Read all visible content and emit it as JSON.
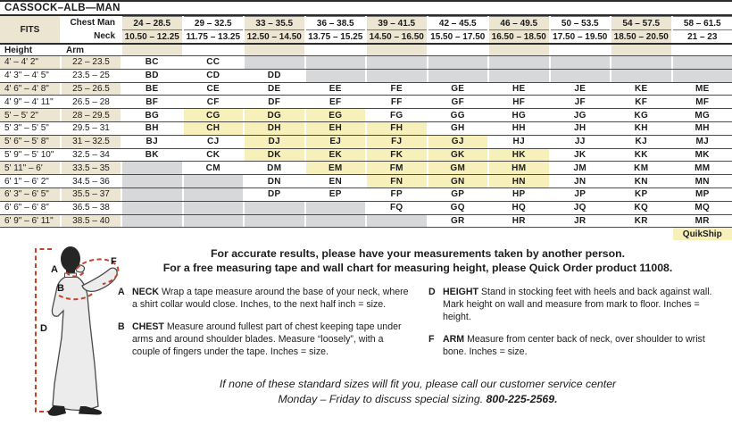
{
  "title": "CASSOCK–ALB—MAN",
  "size_table": {
    "fits_label": "FITS",
    "chest_label": "Chest Man",
    "neck_label": "Neck",
    "height_label": "Height",
    "arm_label": "Arm",
    "chest_ranges": [
      "24 – 28.5",
      "29 – 32.5",
      "33 – 35.5",
      "36 – 38.5",
      "39 – 41.5",
      "42 – 45.5",
      "46 – 49.5",
      "50 – 53.5",
      "54 – 57.5",
      "58 – 61.5"
    ],
    "neck_ranges": [
      "10.50 – 12.25",
      "11.75 – 13.25",
      "12.50 – 14.50",
      "13.75 – 15.25",
      "14.50 – 16.50",
      "15.50 – 17.50",
      "16.50 – 18.50",
      "17.50 – 19.50",
      "18.50 – 20.50",
      "21 – 23"
    ],
    "rows": [
      {
        "height": "4' – 4' 2\"",
        "arm": "22 – 23.5",
        "codes": [
          "BC",
          "CC",
          "",
          "",
          "",
          "",
          "",
          "",
          "",
          ""
        ]
      },
      {
        "height": "4' 3\" – 4' 5\"",
        "arm": "23.5 – 25",
        "codes": [
          "BD",
          "CD",
          "DD",
          "",
          "",
          "",
          "",
          "",
          "",
          ""
        ]
      },
      {
        "height": "4' 6\" – 4' 8\"",
        "arm": "25 – 26.5",
        "codes": [
          "BE",
          "CE",
          "DE",
          "EE",
          "FE",
          "GE",
          "HE",
          "JE",
          "KE",
          "ME"
        ]
      },
      {
        "height": "4' 9\" – 4' 11\"",
        "arm": "26.5 – 28",
        "codes": [
          "BF",
          "CF",
          "DF",
          "EF",
          "FF",
          "GF",
          "HF",
          "JF",
          "KF",
          "MF"
        ]
      },
      {
        "height": "5' – 5' 2\"",
        "arm": "28 – 29.5",
        "codes": [
          "BG",
          "CG",
          "DG",
          "EG",
          "FG",
          "GG",
          "HG",
          "JG",
          "KG",
          "MG"
        ]
      },
      {
        "height": "5' 3\" – 5' 5\"",
        "arm": "29.5 – 31",
        "codes": [
          "BH",
          "CH",
          "DH",
          "EH",
          "FH",
          "GH",
          "HH",
          "JH",
          "KH",
          "MH"
        ]
      },
      {
        "height": "5' 6\" – 5' 8\"",
        "arm": "31 – 32.5",
        "codes": [
          "BJ",
          "CJ",
          "DJ",
          "EJ",
          "FJ",
          "GJ",
          "HJ",
          "JJ",
          "KJ",
          "MJ"
        ]
      },
      {
        "height": "5' 9\" – 5' 10\"",
        "arm": "32.5 – 34",
        "codes": [
          "BK",
          "CK",
          "DK",
          "EK",
          "FK",
          "GK",
          "HK",
          "JK",
          "KK",
          "MK"
        ]
      },
      {
        "height": "5' 11\" – 6'",
        "arm": "33.5 – 35",
        "codes": [
          "",
          "CM",
          "DM",
          "EM",
          "FM",
          "GM",
          "HM",
          "JM",
          "KM",
          "MM"
        ]
      },
      {
        "height": "6' 1\" – 6' 2\"",
        "arm": "34.5 – 36",
        "codes": [
          "",
          "",
          "DN",
          "EN",
          "FN",
          "GN",
          "HN",
          "JN",
          "KN",
          "MN"
        ]
      },
      {
        "height": "6' 3\" – 6' 5\"",
        "arm": "35.5 – 37",
        "codes": [
          "",
          "",
          "DP",
          "EP",
          "FP",
          "GP",
          "HP",
          "JP",
          "KP",
          "MP"
        ]
      },
      {
        "height": "6' 6\" – 6' 8\"",
        "arm": "36.5 – 38",
        "codes": [
          "",
          "",
          "",
          "",
          "FQ",
          "GQ",
          "HQ",
          "JQ",
          "KQ",
          "MQ"
        ]
      },
      {
        "height": "6' 9\" – 6' 11\"",
        "arm": "38.5 – 40",
        "codes": [
          "",
          "",
          "",
          "",
          "",
          "GR",
          "HR",
          "JR",
          "KR",
          "MR"
        ]
      }
    ],
    "quikship_codes": [
      "CG",
      "DG",
      "EG",
      "CH",
      "DH",
      "EH",
      "FH",
      "DJ",
      "EJ",
      "FJ",
      "GJ",
      "DK",
      "EK",
      "FK",
      "GK",
      "HK",
      "EM",
      "FM",
      "GM",
      "HM",
      "FN",
      "GN",
      "HN"
    ],
    "quikship_label": "QuikShip"
  },
  "notes": {
    "line1": "For accurate results, please have your measurements taken by another person.",
    "line2": "For a free measuring tape and wall chart for measuring height, please Quick Order product 11008."
  },
  "instructions": [
    {
      "letter": "A",
      "term": "NECK",
      "text": "Wrap a tape measure around the base of your neck, where a shirt collar would close. Inches, to the next half inch = size."
    },
    {
      "letter": "B",
      "term": "CHEST",
      "text": "Measure around fullest part of chest keeping tape under arms and around shoulder blades. Measure “loosely”, with a couple of fingers under the tape. Inches = size."
    },
    {
      "letter": "D",
      "term": "HEIGHT",
      "text": "Stand in stocking feet with heels and back against wall. Mark height on wall and measure from mark to floor. Inches = height."
    },
    {
      "letter": "F",
      "term": "ARM",
      "text": "Measure from center back of neck, over shoulder to wrist bone. Inches = size."
    }
  ],
  "footer": {
    "line1": "If none of these standard sizes will fit you, please call our customer service center",
    "line2_prefix": "Monday – Friday to discuss special sizing. ",
    "phone": "800-225-2569."
  },
  "figure": {
    "labels": {
      "neck": "A",
      "chest": "B",
      "height": "D",
      "arm": "F"
    }
  },
  "colors": {
    "beige": "#ece5d1",
    "quikship_yellow": "#f7f0bb",
    "unavailable_gray": "#d7d8da",
    "accent_red": "#c64227"
  }
}
